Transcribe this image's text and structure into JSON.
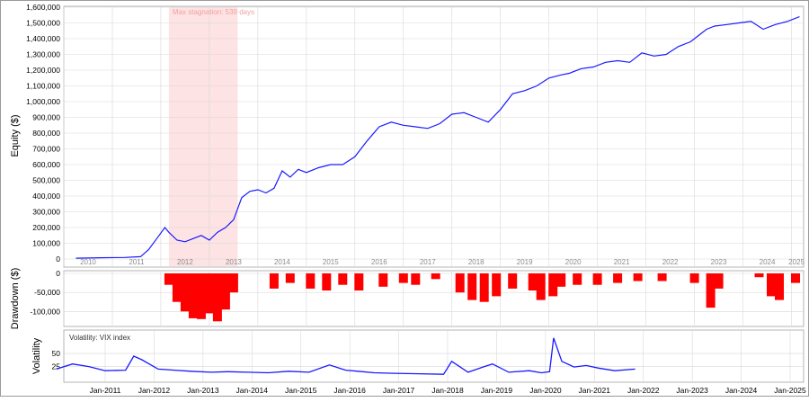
{
  "panels": {
    "equity": {
      "ylabel": "Equity ($)",
      "yticks": [
        "0",
        "100,000",
        "200,000",
        "300,000",
        "400,000",
        "500,000",
        "600,000",
        "700,000",
        "800,000",
        "900,000",
        "1,000,000",
        "1,100,000",
        "1,200,000",
        "1,300,000",
        "1,400,000",
        "1,500,000",
        "1,600,000"
      ],
      "year_labels": [
        "2010",
        "2011",
        "2012",
        "2013",
        "2014",
        "2015",
        "2016",
        "2017",
        "2018",
        "2019",
        "2020",
        "2021",
        "2022",
        "2023",
        "2024",
        "2025"
      ],
      "stagnation_label": "Max stagnation: 539 days"
    },
    "drawdown": {
      "ylabel": "Drawdown ($)",
      "yticks": [
        "0",
        "-50,000",
        "-100,000"
      ]
    },
    "volatility": {
      "ylabel": "Volatility",
      "legend": "Volatility: VIX index",
      "yticks": [
        "50",
        "25"
      ]
    }
  },
  "xaxis": {
    "labels": [
      "Jan-2011",
      "Jan-2012",
      "Jan-2013",
      "Jan-2014",
      "Jan-2015",
      "Jan-2016",
      "Jan-2017",
      "Jan-2018",
      "Jan-2019",
      "Jan-2020",
      "Jan-2021",
      "Jan-2022",
      "Jan-2023",
      "Jan-2024",
      "Jan-2025"
    ]
  },
  "colors": {
    "line": "#1a1aff",
    "drawdown": "#ff0000",
    "stagnation": "#fde3e3",
    "stagnation_text": "#f2a0a0",
    "grid": "#d8d8d8",
    "text": "#000000",
    "muted_text": "#8c8c8c"
  },
  "chart_data": [
    {
      "type": "line",
      "title": "",
      "ylabel": "Equity ($)",
      "ylim": [
        0,
        1600000
      ],
      "x": [
        "2010-04",
        "2010-10",
        "2011-04",
        "2011-08",
        "2011-10",
        "2011-12",
        "2012-02",
        "2012-03",
        "2012-05",
        "2012-07",
        "2012-09",
        "2012-11",
        "2013-01",
        "2013-03",
        "2013-05",
        "2013-07",
        "2013-09",
        "2013-11",
        "2014-01",
        "2014-03",
        "2014-05",
        "2014-07",
        "2014-09",
        "2014-11",
        "2015-01",
        "2015-04",
        "2015-07",
        "2015-10",
        "2016-01",
        "2016-04",
        "2016-07",
        "2016-10",
        "2017-01",
        "2017-04",
        "2017-07",
        "2017-10",
        "2018-01",
        "2018-04",
        "2018-07",
        "2018-10",
        "2019-01",
        "2019-04",
        "2019-07",
        "2019-10",
        "2020-01",
        "2020-04",
        "2020-06",
        "2020-09",
        "2020-12",
        "2021-03",
        "2021-06",
        "2021-09",
        "2021-12",
        "2022-03",
        "2022-06",
        "2022-09",
        "2022-12",
        "2023-02",
        "2023-04",
        "2023-06",
        "2023-09",
        "2023-12",
        "2024-03",
        "2024-06",
        "2024-09",
        "2024-12",
        "2025-03"
      ],
      "y": [
        5000,
        8000,
        10000,
        15000,
        60000,
        130000,
        200000,
        170000,
        120000,
        110000,
        130000,
        150000,
        120000,
        170000,
        200000,
        250000,
        390000,
        430000,
        440000,
        420000,
        450000,
        560000,
        520000,
        570000,
        550000,
        580000,
        600000,
        600000,
        650000,
        750000,
        840000,
        870000,
        850000,
        840000,
        830000,
        860000,
        920000,
        930000,
        900000,
        870000,
        950000,
        1050000,
        1070000,
        1100000,
        1150000,
        1170000,
        1180000,
        1210000,
        1220000,
        1250000,
        1260000,
        1250000,
        1310000,
        1290000,
        1300000,
        1350000,
        1380000,
        1420000,
        1460000,
        1480000,
        1490000,
        1500000,
        1510000,
        1460000,
        1490000,
        1510000,
        1540000
      ],
      "xrange": [
        "2010-01",
        "2025-04"
      ],
      "year_labels_inside_plot": true,
      "shaded_region": {
        "start": "2012-03",
        "end": "2013-08",
        "label": "Max stagnation: 539 days"
      },
      "grid": true
    },
    {
      "type": "bar",
      "title": "",
      "ylabel": "Drawdown ($)",
      "ylim": [
        -130000,
        0
      ],
      "x": [
        "2012-03",
        "2012-05",
        "2012-07",
        "2012-09",
        "2012-11",
        "2013-01",
        "2013-03",
        "2013-05",
        "2013-07",
        "2014-05",
        "2014-09",
        "2015-02",
        "2015-06",
        "2015-10",
        "2016-02",
        "2016-08",
        "2017-01",
        "2017-04",
        "2017-09",
        "2018-03",
        "2018-06",
        "2018-09",
        "2018-12",
        "2019-04",
        "2019-09",
        "2019-11",
        "2020-02",
        "2020-04",
        "2020-08",
        "2021-01",
        "2021-06",
        "2021-11",
        "2022-05",
        "2023-01",
        "2023-05",
        "2023-07",
        "2024-05",
        "2024-08",
        "2024-10",
        "2025-02"
      ],
      "y": [
        -30000,
        -75000,
        -100000,
        -118000,
        -120000,
        -105000,
        -126000,
        -95000,
        -50000,
        -40000,
        -25000,
        -40000,
        -45000,
        -30000,
        -45000,
        -35000,
        -25000,
        -30000,
        -15000,
        -50000,
        -70000,
        -75000,
        -60000,
        -40000,
        -45000,
        -70000,
        -60000,
        -35000,
        -30000,
        -30000,
        -25000,
        -20000,
        -20000,
        -25000,
        -90000,
        -40000,
        -10000,
        -60000,
        -70000,
        -25000
      ],
      "grid": true
    },
    {
      "type": "line",
      "title": "",
      "ylabel": "Volatility",
      "series": [
        {
          "name": "Volatility: VIX index"
        }
      ],
      "ylim": [
        0,
        90
      ],
      "x": [
        "2010-01",
        "2010-05",
        "2010-09",
        "2011-01",
        "2011-06",
        "2011-08",
        "2011-10",
        "2012-02",
        "2012-06",
        "2012-10",
        "2013-03",
        "2013-07",
        "2013-12",
        "2014-05",
        "2014-10",
        "2015-03",
        "2015-08",
        "2015-12",
        "2016-03",
        "2016-07",
        "2016-12",
        "2017-06",
        "2017-12",
        "2018-02",
        "2018-06",
        "2018-10",
        "2018-12",
        "2019-04",
        "2019-09",
        "2019-12",
        "2020-02",
        "2020-03",
        "2020-05",
        "2020-08",
        "2020-11",
        "2021-02",
        "2021-06",
        "2021-11"
      ],
      "y": [
        20,
        30,
        25,
        17,
        18,
        45,
        38,
        20,
        18,
        16,
        14,
        15,
        14,
        13,
        16,
        14,
        28,
        18,
        16,
        13,
        12,
        11,
        10,
        35,
        14,
        25,
        30,
        14,
        17,
        13,
        15,
        80,
        35,
        24,
        27,
        22,
        17,
        20
      ],
      "grid": true
    }
  ]
}
